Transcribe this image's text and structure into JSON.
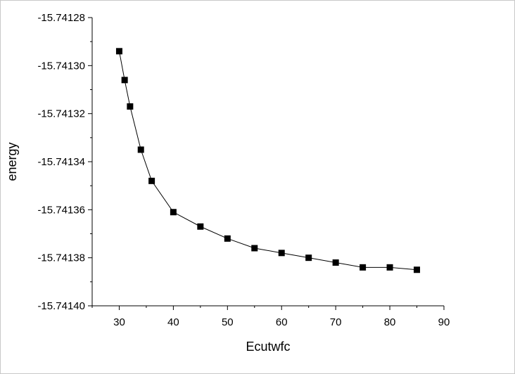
{
  "chart_data": {
    "type": "line",
    "title": "",
    "xlabel": "Ecutwfc",
    "ylabel": "energy",
    "xlim": [
      25,
      90
    ],
    "ylim": [
      -15.7414,
      -15.74128
    ],
    "x_ticks": [
      "30",
      "40",
      "50",
      "60",
      "70",
      "80",
      "90"
    ],
    "y_ticks": [
      "-15.74128",
      "-15.74130",
      "-15.74132",
      "-15.74134",
      "-15.74136",
      "-15.74138",
      "-15.74140"
    ],
    "grid": false,
    "legend": "none",
    "series": [
      {
        "marker": "square",
        "color": "#000000",
        "x": [
          30,
          31,
          32,
          34,
          36,
          40,
          45,
          50,
          55,
          60,
          65,
          70,
          75,
          80,
          85
        ],
        "y": [
          -15.741294,
          -15.741306,
          -15.741317,
          -15.741335,
          -15.741348,
          -15.741361,
          -15.741367,
          -15.741372,
          -15.741376,
          -15.741378,
          -15.74138,
          -15.741382,
          -15.741384,
          -15.741384,
          -15.741385
        ]
      }
    ]
  }
}
